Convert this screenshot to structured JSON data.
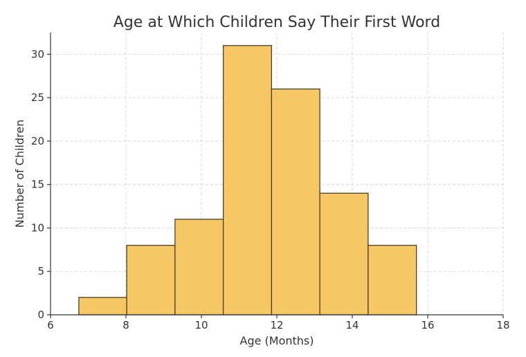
{
  "chart_data": {
    "type": "bar",
    "title": "Age at Which Children Say Their First Word",
    "xlabel": "Age (Months)",
    "ylabel": "Number of Children",
    "xlim": [
      6,
      18
    ],
    "ylim": [
      0,
      32.5
    ],
    "xticks": [
      6,
      8,
      10,
      12,
      14,
      16,
      18
    ],
    "yticks": [
      0,
      5,
      10,
      15,
      20,
      25,
      30
    ],
    "grid": true,
    "bar_color": "#f5c765",
    "edge_color": "#4a3f2a",
    "bins": [
      {
        "start": 6.75,
        "end": 8.02,
        "count": 2
      },
      {
        "start": 8.02,
        "end": 9.3,
        "count": 8
      },
      {
        "start": 9.3,
        "end": 10.58,
        "count": 11
      },
      {
        "start": 10.58,
        "end": 11.86,
        "count": 31
      },
      {
        "start": 11.86,
        "end": 13.14,
        "count": 26
      },
      {
        "start": 13.14,
        "end": 14.42,
        "count": 14
      },
      {
        "start": 14.42,
        "end": 15.7,
        "count": 8
      }
    ]
  }
}
